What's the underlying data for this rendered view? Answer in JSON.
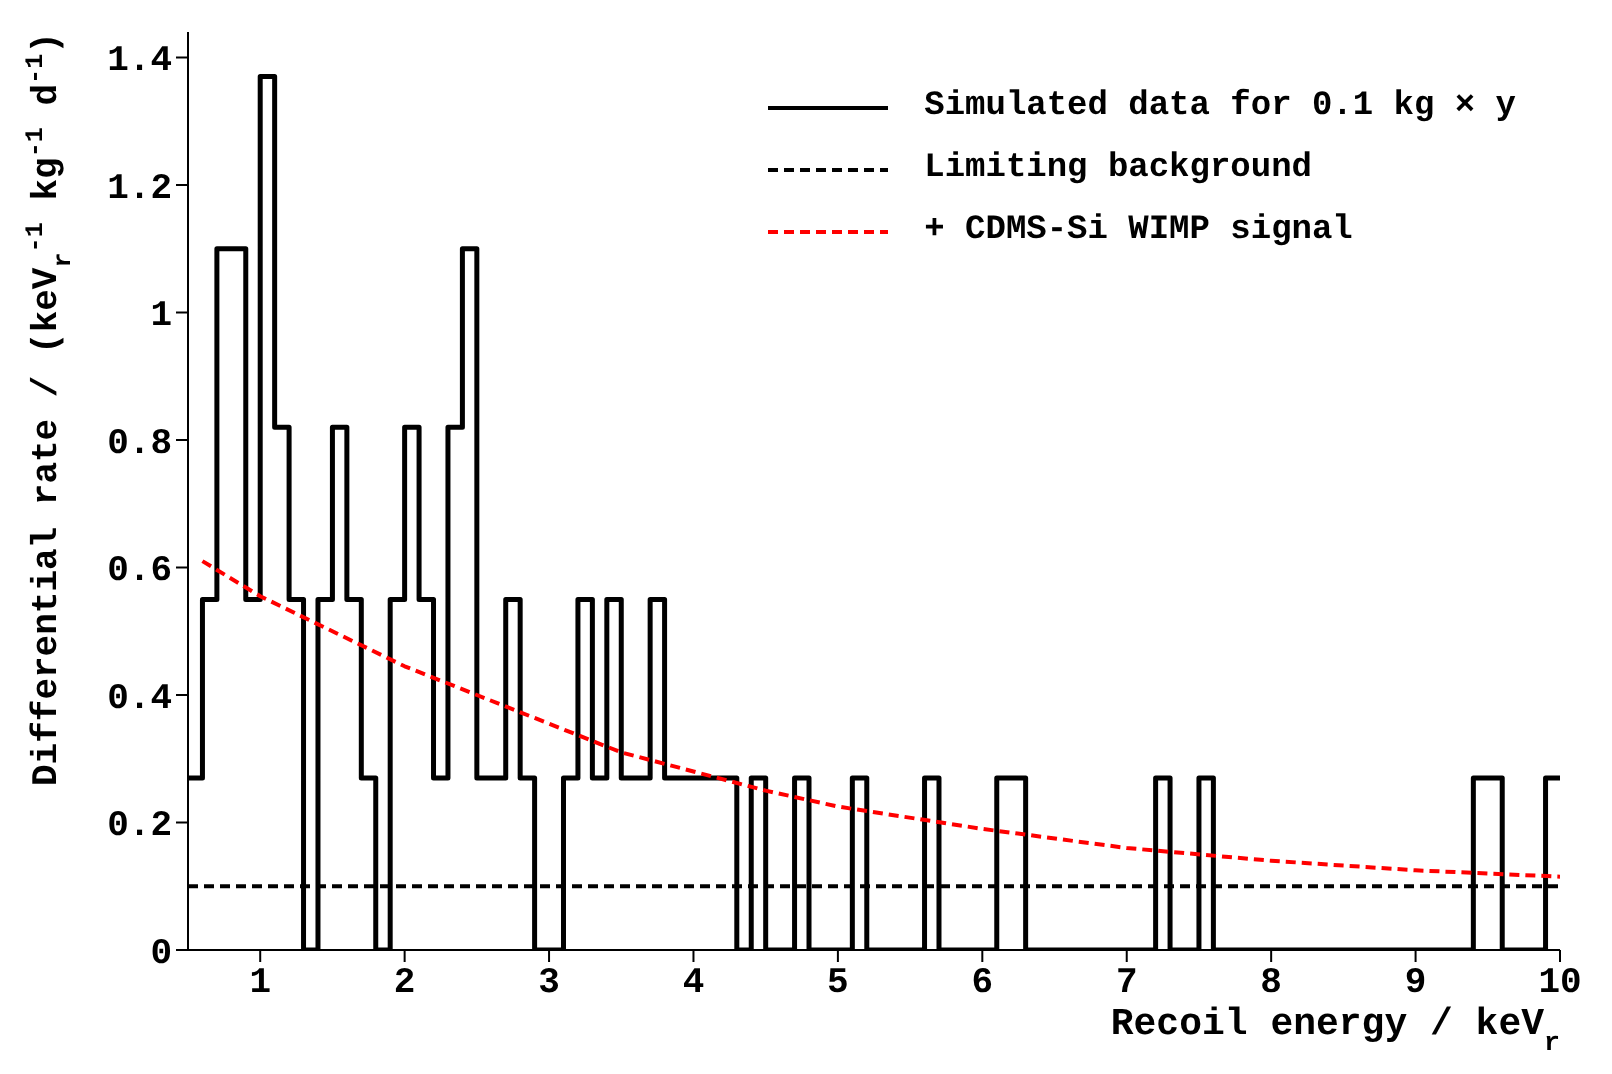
{
  "chart_data": {
    "type": "histogram",
    "xlabel": "Recoil energy / keV$_{r}$",
    "ylabel": "Differential rate / (keV$_{r}$$^{-1}$ kg$^{-1}$ d$^{-1}$)",
    "xlim": [
      0.5,
      10
    ],
    "xticks": [
      1,
      2,
      3,
      4,
      5,
      6,
      7,
      8,
      9,
      10
    ],
    "ylim": [
      0,
      1.44
    ],
    "yticks": [
      0,
      0.2,
      0.4,
      0.6,
      0.8,
      1,
      1.2,
      1.4
    ],
    "grid": false,
    "legend": "top right",
    "series": [
      {
        "type": "histogram",
        "name": "Simulated data for 0.1 kg × y",
        "color": "#000000",
        "line_style": "solid",
        "bins": [
          0.5,
          0.6,
          0.7,
          0.8,
          0.9,
          1.0,
          1.1,
          1.2,
          1.3,
          1.4,
          1.5,
          1.6,
          1.7,
          1.8,
          1.9,
          2.0,
          2.1,
          2.2,
          2.3,
          2.4,
          2.5,
          2.6,
          2.7,
          2.8,
          2.9,
          3.0,
          3.1,
          3.2,
          3.3,
          3.4,
          3.5,
          3.6,
          3.7,
          3.8,
          3.9,
          4.0,
          4.1,
          4.2,
          4.3,
          4.4,
          4.5,
          4.6,
          4.7,
          4.8,
          4.9,
          5.0,
          5.1,
          5.2,
          5.3,
          5.4,
          5.5,
          5.6,
          5.7,
          5.8,
          5.9,
          6.0,
          6.1,
          6.2,
          6.3,
          6.4,
          6.5,
          6.6,
          6.7,
          6.8,
          6.9,
          7.0,
          7.1,
          7.2,
          7.3,
          7.4,
          7.5,
          7.6,
          7.7,
          7.8,
          7.9,
          8.0,
          8.1,
          8.2,
          8.3,
          8.4,
          8.5,
          8.6,
          8.7,
          8.8,
          8.9,
          9.0,
          9.1,
          9.2,
          9.3,
          9.4,
          9.5,
          9.6,
          9.7,
          9.8,
          9.9,
          10.0
        ],
        "values": [
          0.27,
          0.55,
          1.1,
          1.1,
          0.55,
          1.37,
          0.82,
          0.55,
          0,
          0.55,
          0.82,
          0.55,
          0.27,
          0,
          0.55,
          0.82,
          0.55,
          0.27,
          0.82,
          1.1,
          0.27,
          0.27,
          0.55,
          0.27,
          0,
          0,
          0.27,
          0.55,
          0.27,
          0.55,
          0.27,
          0.27,
          0.55,
          0.27,
          0.27,
          0.27,
          0.27,
          0.27,
          0,
          0.27,
          0,
          0,
          0.27,
          0,
          0,
          0,
          0.27,
          0,
          0,
          0,
          0,
          0.27,
          0,
          0,
          0,
          0,
          0.27,
          0.27,
          0,
          0,
          0,
          0,
          0,
          0,
          0,
          0,
          0,
          0.27,
          0,
          0,
          0.27,
          0,
          0,
          0,
          0,
          0,
          0,
          0,
          0,
          0,
          0,
          0,
          0,
          0,
          0,
          0,
          0,
          0,
          0,
          0.27,
          0.27,
          0,
          0,
          0,
          0.27
        ]
      },
      {
        "type": "line",
        "name": "Limiting background",
        "color": "#000000",
        "line_style": "dashed",
        "x": [
          0.5,
          10
        ],
        "values": [
          0.1,
          0.1
        ]
      },
      {
        "type": "line",
        "name": "+ CDMS-Si WIMP signal",
        "color": "#ff0000",
        "line_style": "dashed",
        "x": [
          0.6,
          1,
          1.5,
          2,
          2.5,
          3,
          3.5,
          4,
          4.5,
          5,
          6,
          7,
          8,
          9,
          10
        ],
        "values": [
          0.61,
          0.555,
          0.5,
          0.445,
          0.4,
          0.355,
          0.31,
          0.28,
          0.25,
          0.225,
          0.19,
          0.16,
          0.14,
          0.125,
          0.115
        ]
      }
    ]
  }
}
